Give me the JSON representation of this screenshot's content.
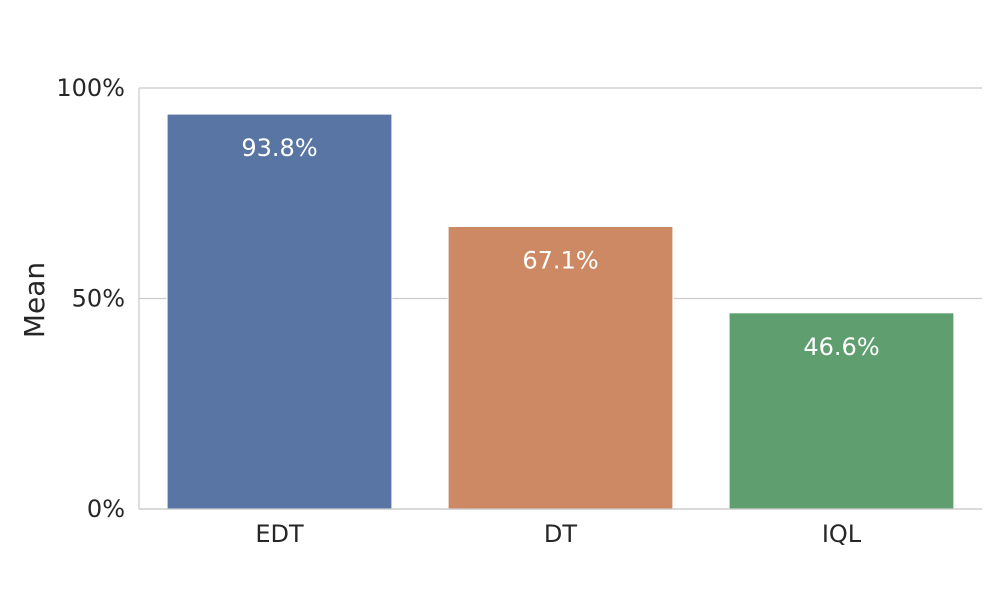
{
  "chart_data": {
    "type": "bar",
    "categories": [
      "EDT",
      "DT",
      "IQL"
    ],
    "values": [
      93.8,
      67.1,
      46.6
    ],
    "data_labels": [
      "93.8%",
      "67.1%",
      "46.6%"
    ],
    "colors": [
      "#5975a4",
      "#cc8963",
      "#5f9e6e"
    ],
    "ylabel": "Mean",
    "ylim": [
      0,
      100
    ],
    "yticks": [
      0,
      50,
      100
    ],
    "ytick_labels": [
      "0%",
      "50%",
      "100%"
    ],
    "grid": "horizontal",
    "grid_color": "#cccccc",
    "axis_color": "#cccccc"
  }
}
